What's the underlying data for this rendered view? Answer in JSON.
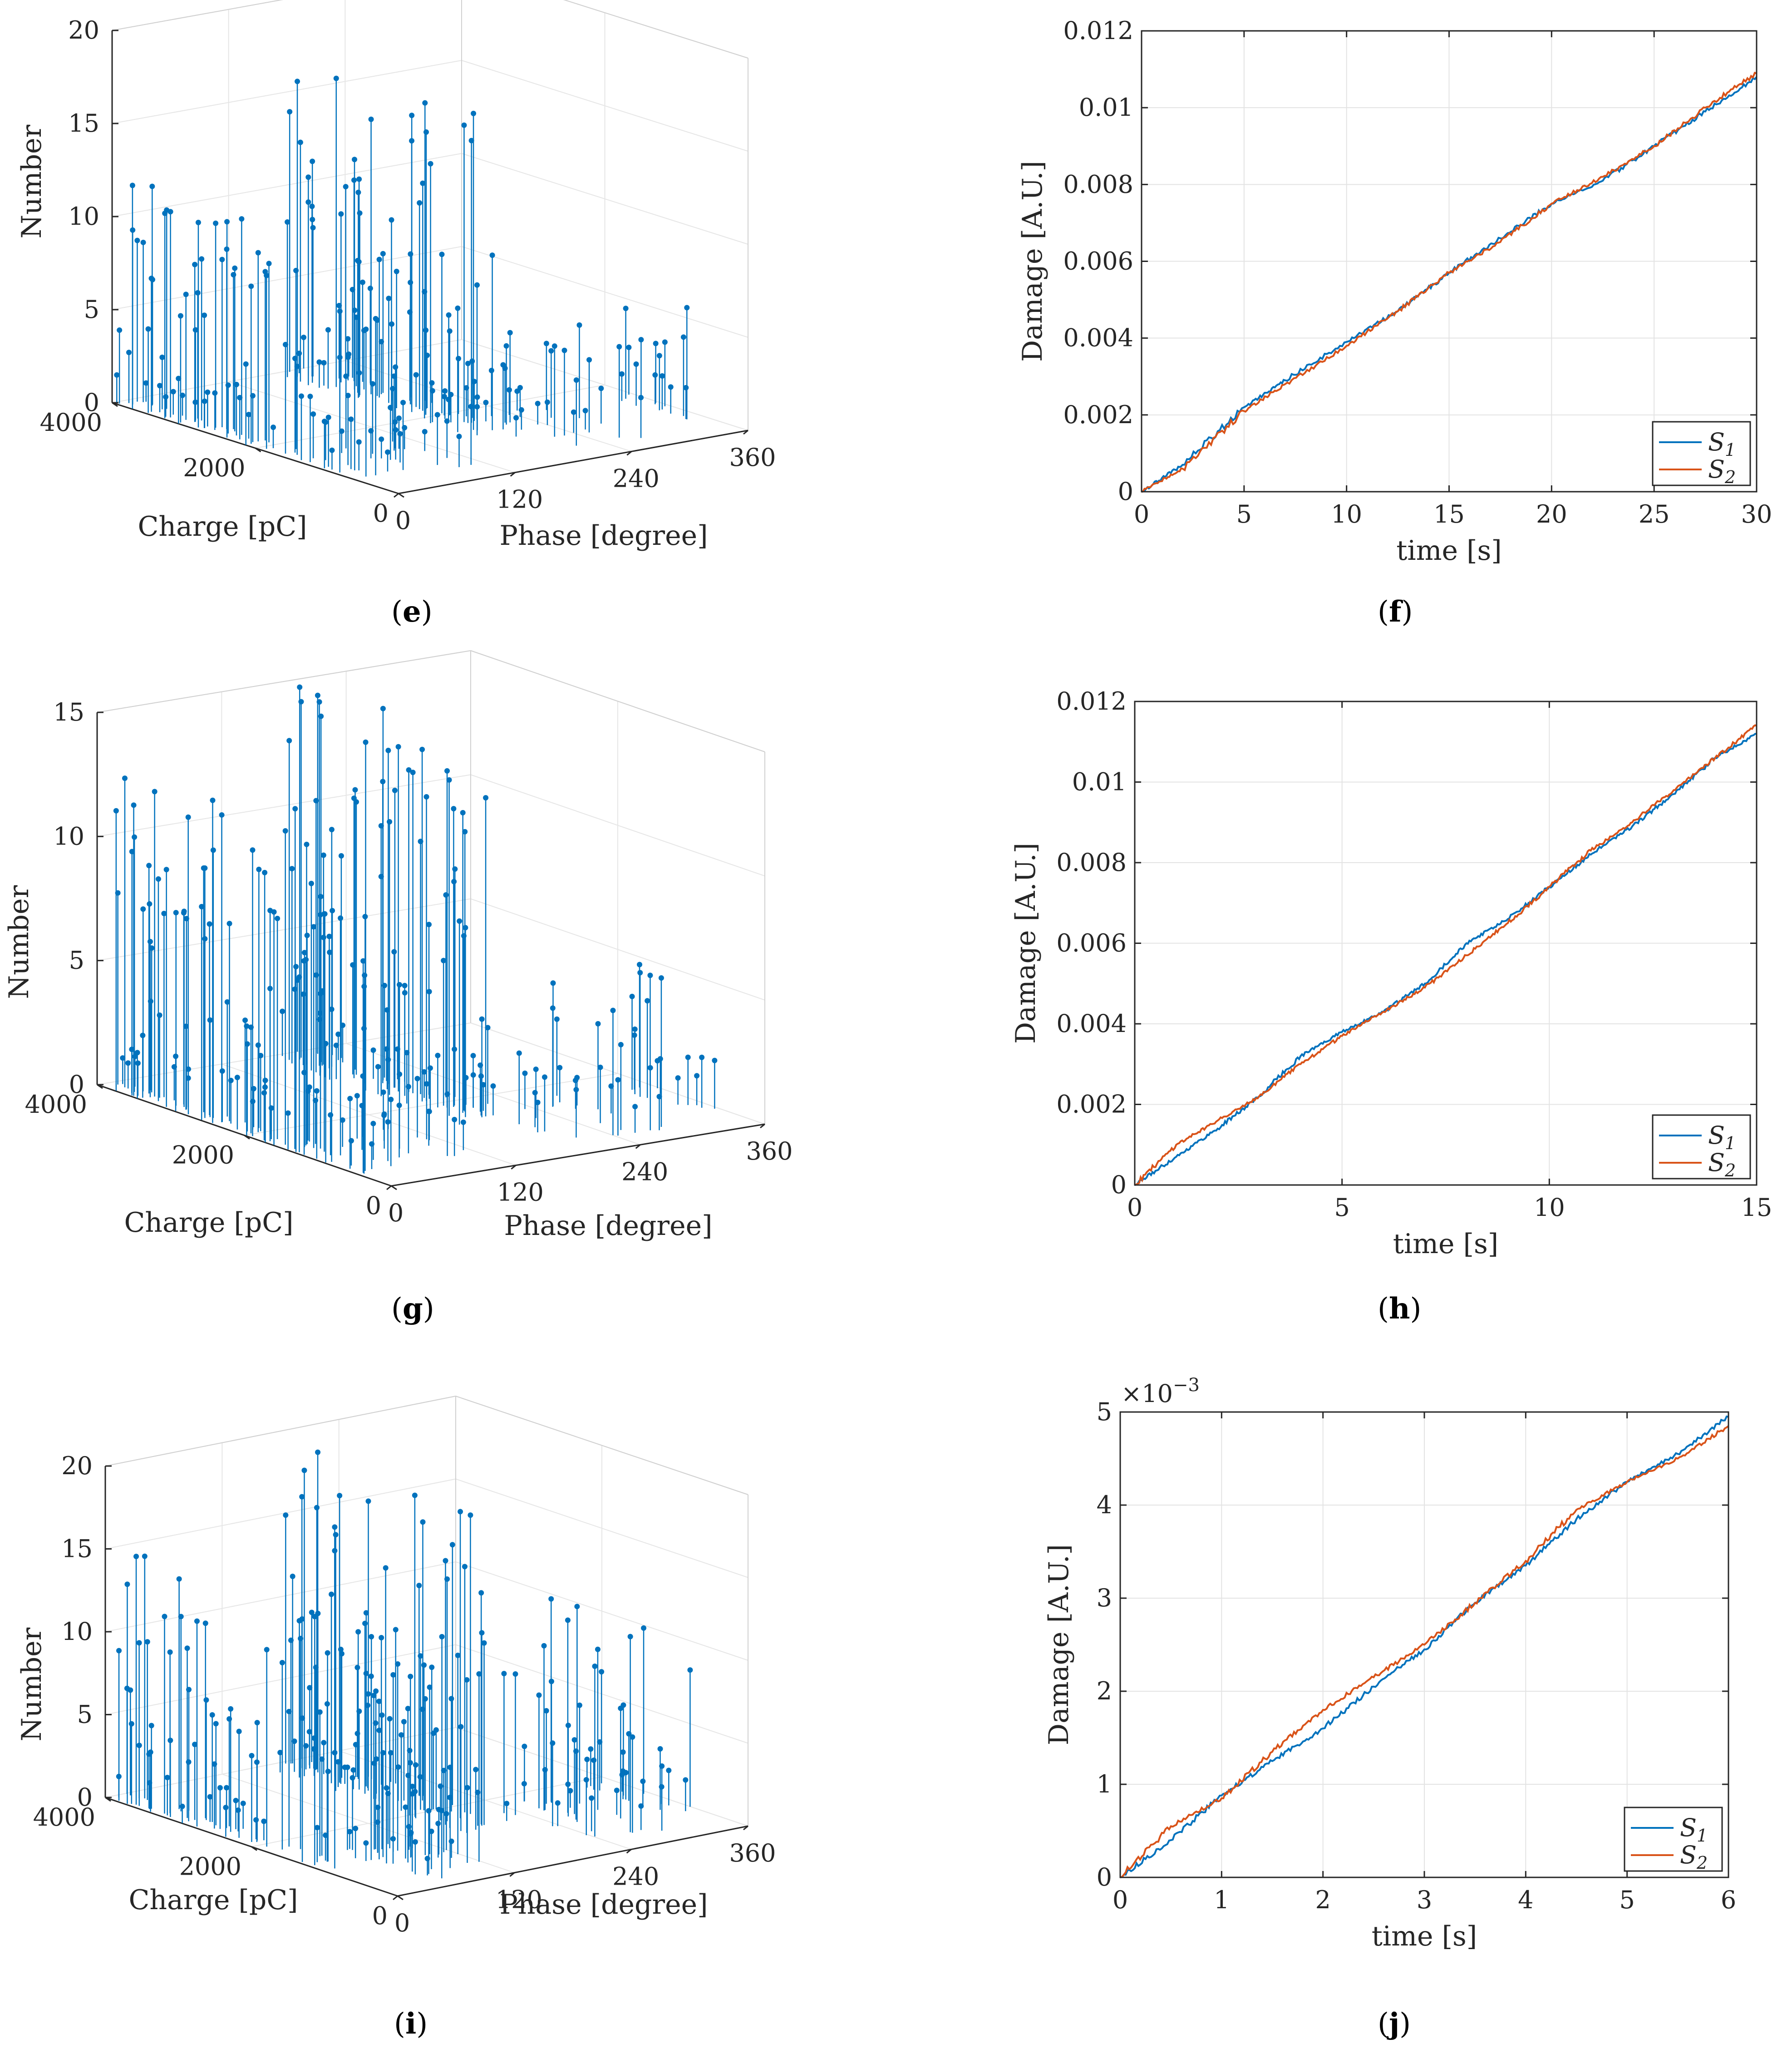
{
  "chart_data": [
    {
      "id": "e",
      "type": "3d-stem",
      "panel_label": "e",
      "xlabel": "Phase [degree]",
      "ylabel": "Charge [pC]",
      "zlabel": "Number",
      "x_ticks": [
        "0",
        "120",
        "240",
        "360"
      ],
      "y_ticks": [
        "0",
        "2000",
        "4000"
      ],
      "z_ticks": [
        "0",
        "5",
        "10",
        "15",
        "20"
      ],
      "xlim": [
        0,
        360
      ],
      "ylim": [
        0,
        4000
      ],
      "zlim": [
        0,
        20
      ],
      "grid": true,
      "series_color": "#0072BD",
      "clusters": [
        {
          "phase": [
            0,
            25
          ],
          "charge": [
            500,
            4000
          ],
          "z_max": 12,
          "count": 70
        },
        {
          "phase": [
            20,
            110
          ],
          "charge": [
            300,
            1600
          ],
          "z_max": 4,
          "count": 22
        },
        {
          "phase": [
            165,
            210
          ],
          "charge": [
            1200,
            4000
          ],
          "z_max": 17,
          "count": 80
        },
        {
          "phase": [
            195,
            280
          ],
          "charge": [
            300,
            1800
          ],
          "z_max": 5,
          "count": 25
        },
        {
          "phase": [
            335,
            360
          ],
          "charge": [
            600,
            1700
          ],
          "z_max": 6,
          "count": 14
        }
      ]
    },
    {
      "id": "f",
      "type": "line",
      "panel_label": "f",
      "xlabel": "time [s]",
      "ylabel": "Damage [A.U.]",
      "xlim": [
        0,
        30
      ],
      "ylim": [
        0,
        0.012
      ],
      "x_ticks": [
        "0",
        "5",
        "10",
        "15",
        "20",
        "25",
        "30"
      ],
      "y_ticks": [
        "0",
        "0.002",
        "0.004",
        "0.006",
        "0.008",
        "0.01",
        "0.012"
      ],
      "exponent_label": "",
      "legend": [
        "S1",
        "S2"
      ],
      "legend_position": "bottom-right",
      "grid": true,
      "series": [
        {
          "name": "S1",
          "color": "#0072BD",
          "x": [
            0,
            2,
            5,
            7,
            10,
            12.5,
            15,
            17.5,
            20,
            22.5,
            25,
            27.5,
            30
          ],
          "y": [
            0,
            0.0007,
            0.0022,
            0.0029,
            0.0039,
            0.0047,
            0.0057,
            0.0066,
            0.0075,
            0.0081,
            0.009,
            0.0099,
            0.0108
          ]
        },
        {
          "name": "S2",
          "color": "#D95319",
          "x": [
            0,
            2,
            5,
            7,
            10,
            12.5,
            15,
            17.5,
            20,
            22.5,
            25,
            27.5,
            30
          ],
          "y": [
            0,
            0.0006,
            0.0021,
            0.0028,
            0.0038,
            0.0047,
            0.0057,
            0.0065,
            0.0075,
            0.0082,
            0.009,
            0.01,
            0.0109
          ]
        }
      ]
    },
    {
      "id": "g",
      "type": "3d-stem",
      "panel_label": "g",
      "xlabel": "Phase [degree]",
      "ylabel": "Charge [pC]",
      "zlabel": "Number",
      "x_ticks": [
        "0",
        "120",
        "240",
        "360"
      ],
      "y_ticks": [
        "0",
        "2000",
        "4000"
      ],
      "z_ticks": [
        "0",
        "5",
        "10",
        "15"
      ],
      "xlim": [
        0,
        360
      ],
      "ylim": [
        0,
        4000
      ],
      "zlim": [
        0,
        15
      ],
      "grid": true,
      "series_color": "#0072BD",
      "clusters": [
        {
          "phase": [
            0,
            25
          ],
          "charge": [
            400,
            4000
          ],
          "z_max": 13,
          "count": 90
        },
        {
          "phase": [
            20,
            120
          ],
          "charge": [
            200,
            1600
          ],
          "z_max": 3,
          "count": 24
        },
        {
          "phase": [
            160,
            210
          ],
          "charge": [
            1200,
            4000
          ],
          "z_max": 15,
          "count": 90
        },
        {
          "phase": [
            195,
            290
          ],
          "charge": [
            300,
            1800
          ],
          "z_max": 6,
          "count": 24
        },
        {
          "phase": [
            330,
            360
          ],
          "charge": [
            600,
            1600
          ],
          "z_max": 5,
          "count": 14
        }
      ]
    },
    {
      "id": "h",
      "type": "line",
      "panel_label": "h",
      "xlabel": "time [s]",
      "ylabel": "Damage [A.U.]",
      "xlim": [
        0,
        15
      ],
      "ylim": [
        0,
        0.012
      ],
      "x_ticks": [
        "0",
        "5",
        "10",
        "15"
      ],
      "y_ticks": [
        "0",
        "0.002",
        "0.004",
        "0.006",
        "0.008",
        "0.01",
        "0.012"
      ],
      "exponent_label": "",
      "legend": [
        "S1",
        "S2"
      ],
      "legend_position": "bottom-right",
      "grid": true,
      "series": [
        {
          "name": "S1",
          "color": "#0072BD",
          "x": [
            0,
            1,
            2,
            3,
            4,
            5,
            6,
            7,
            8,
            9,
            10,
            11,
            12,
            13,
            14,
            15
          ],
          "y": [
            0,
            0.0007,
            0.0014,
            0.0022,
            0.0032,
            0.0038,
            0.0043,
            0.005,
            0.006,
            0.0066,
            0.0074,
            0.0082,
            0.0089,
            0.0097,
            0.0106,
            0.0112
          ]
        },
        {
          "name": "S2",
          "color": "#D95319",
          "x": [
            0,
            1,
            2,
            3,
            4,
            5,
            6,
            7,
            8,
            9,
            10,
            11,
            12,
            13,
            14,
            15
          ],
          "y": [
            0,
            0.001,
            0.0016,
            0.0022,
            0.003,
            0.0037,
            0.0043,
            0.0049,
            0.0057,
            0.0065,
            0.0074,
            0.0083,
            0.009,
            0.0098,
            0.0106,
            0.0114
          ]
        }
      ]
    },
    {
      "id": "i",
      "type": "3d-stem",
      "panel_label": "i",
      "xlabel": "Phase [degree]",
      "ylabel": "Charge [pC]",
      "zlabel": "Number",
      "x_ticks": [
        "0",
        "120",
        "240",
        "360"
      ],
      "y_ticks": [
        "0",
        "2000",
        "4000"
      ],
      "z_ticks": [
        "0",
        "5",
        "10",
        "15",
        "20"
      ],
      "xlim": [
        0,
        360
      ],
      "ylim": [
        0,
        4000
      ],
      "zlim": [
        0,
        20
      ],
      "grid": true,
      "series_color": "#0072BD",
      "clusters": [
        {
          "phase": [
            0,
            30
          ],
          "charge": [
            700,
            4000
          ],
          "z_max": 15,
          "count": 60
        },
        {
          "phase": [
            45,
            120
          ],
          "charge": [
            200,
            1500
          ],
          "z_max": 12,
          "count": 45
        },
        {
          "phase": [
            160,
            215
          ],
          "charge": [
            1200,
            4000
          ],
          "z_max": 19,
          "count": 85
        },
        {
          "phase": [
            225,
            300
          ],
          "charge": [
            300,
            1800
          ],
          "z_max": 13,
          "count": 30
        },
        {
          "phase": [
            325,
            360
          ],
          "charge": [
            600,
            2000
          ],
          "z_max": 10,
          "count": 18
        }
      ]
    },
    {
      "id": "j",
      "type": "line",
      "panel_label": "j",
      "xlabel": "time [s]",
      "ylabel": "Damage [A.U.]",
      "xlim": [
        0,
        6
      ],
      "ylim": [
        0,
        5
      ],
      "x_ticks": [
        "0",
        "1",
        "2",
        "3",
        "4",
        "5",
        "6"
      ],
      "y_ticks": [
        "0",
        "1",
        "2",
        "3",
        "4",
        "5"
      ],
      "exponent_label": "×10",
      "exponent_value": "−3",
      "legend": [
        "S1",
        "S2"
      ],
      "legend_position": "bottom-right",
      "grid": true,
      "series": [
        {
          "name": "S1",
          "color": "#0072BD",
          "x": [
            0,
            0.5,
            1,
            1.5,
            2,
            2.5,
            3,
            3.5,
            4,
            4.5,
            5,
            5.5,
            6
          ],
          "y": [
            0,
            0.4,
            0.88,
            1.25,
            1.6,
            2.05,
            2.45,
            2.95,
            3.35,
            3.85,
            4.25,
            4.55,
            4.95
          ]
        },
        {
          "name": "S2",
          "color": "#D95319",
          "x": [
            0,
            0.5,
            1,
            1.5,
            2,
            2.5,
            3,
            3.5,
            4,
            4.5,
            5,
            5.5,
            6
          ],
          "y": [
            0,
            0.55,
            0.85,
            1.35,
            1.8,
            2.15,
            2.5,
            2.95,
            3.4,
            3.95,
            4.25,
            4.5,
            4.85
          ]
        }
      ]
    }
  ]
}
